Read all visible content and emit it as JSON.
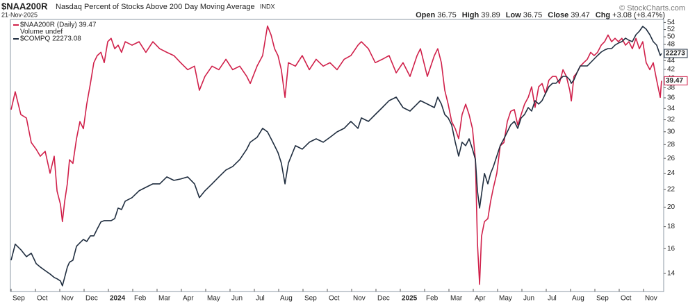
{
  "chart_data": {
    "type": "line",
    "title": "$NAA200R",
    "subtitle": "Nasdaq Percent of Stocks Above 200 Day Moving Average",
    "exchange": "INDX",
    "date": "21-Nov-2025",
    "watermark": "© StockCharts.com",
    "quote": [
      {
        "label": "Open",
        "value": 36.75
      },
      {
        "label": "High",
        "value": 39.89
      },
      {
        "label": "Low",
        "value": 36.75
      },
      {
        "label": "Close",
        "value": 39.47
      },
      {
        "label": "Chg",
        "value": "+3.08 (+8.47%)"
      }
    ],
    "legend_note": "Volume undef",
    "ylog": true,
    "y2log": true,
    "xlim": [
      0,
      26.8
    ],
    "ylim": [
      12.7,
      54.9
    ],
    "y2lim": [
      12425,
      24210
    ],
    "yticks": [
      14,
      16,
      18,
      20,
      22,
      24,
      26,
      28,
      30,
      32,
      34,
      36,
      38,
      40,
      42,
      44,
      46,
      48,
      50,
      52,
      54
    ],
    "xticks": [
      {
        "value": 0,
        "label": "Sep"
      },
      {
        "value": 1,
        "label": "Oct"
      },
      {
        "value": 2,
        "label": "Nov"
      },
      {
        "value": 3,
        "label": "Dec"
      },
      {
        "value": 4,
        "label": "2024"
      },
      {
        "value": 5,
        "label": "Feb"
      },
      {
        "value": 6,
        "label": "Mar"
      },
      {
        "value": 7,
        "label": "Apr"
      },
      {
        "value": 8,
        "label": "May"
      },
      {
        "value": 9,
        "label": "Jun"
      },
      {
        "value": 10,
        "label": "Jul"
      },
      {
        "value": 11,
        "label": "Aug"
      },
      {
        "value": 12,
        "label": "Sep"
      },
      {
        "value": 13,
        "label": "Oct"
      },
      {
        "value": 14,
        "label": "Nov"
      },
      {
        "value": 15,
        "label": "Dec"
      },
      {
        "value": 16,
        "label": "2025"
      },
      {
        "value": 17,
        "label": "Feb"
      },
      {
        "value": 18,
        "label": "Mar"
      },
      {
        "value": 19,
        "label": "Apr"
      },
      {
        "value": 20,
        "label": "May"
      },
      {
        "value": 21,
        "label": "Jun"
      },
      {
        "value": 22,
        "label": "Jul"
      },
      {
        "value": 23,
        "label": "Aug"
      },
      {
        "value": 24,
        "label": "Sep"
      },
      {
        "value": 25,
        "label": "Oct"
      },
      {
        "value": 26,
        "label": "Nov"
      }
    ],
    "x": [
      0,
      0.17,
      0.4,
      0.63,
      0.83,
      1.03,
      1.2,
      1.4,
      1.6,
      1.77,
      1.89,
      2.03,
      2.11,
      2.2,
      2.31,
      2.4,
      2.54,
      2.69,
      2.83,
      2.97,
      3.11,
      3.26,
      3.4,
      3.54,
      3.69,
      3.83,
      3.97,
      4.11,
      4.26,
      4.4,
      4.54,
      4.69,
      4.97,
      5.26,
      5.54,
      5.83,
      6.11,
      6.4,
      6.69,
      6.97,
      7.26,
      7.54,
      7.74,
      7.97,
      8.26,
      8.54,
      8.83,
      9.11,
      9.4,
      9.69,
      9.83,
      10.11,
      10.34,
      10.54,
      10.69,
      10.83,
      10.97,
      11.11,
      11.26,
      11.4,
      11.69,
      11.97,
      12.26,
      12.54,
      12.83,
      13.11,
      13.4,
      13.69,
      13.97,
      14.26,
      14.4,
      14.69,
      14.97,
      15.26,
      15.54,
      15.83,
      16.11,
      16.4,
      16.69,
      16.83,
      17.11,
      17.4,
      17.54,
      17.69,
      17.83,
      17.97,
      18.11,
      18.26,
      18.4,
      18.54,
      18.69,
      18.83,
      18.97,
      19.09,
      19.17,
      19.26,
      19.34,
      19.46,
      19.6,
      19.71,
      19.83,
      19.97,
      20.11,
      20.26,
      20.4,
      20.54,
      20.69,
      20.83,
      20.97,
      21.11,
      21.26,
      21.4,
      21.54,
      21.69,
      21.83,
      21.97,
      22.11,
      22.26,
      22.4,
      22.54,
      22.69,
      22.83,
      22.97,
      23.03,
      23.14,
      23.26,
      23.4,
      23.54,
      23.69,
      23.83,
      23.97,
      24.11,
      24.26,
      24.4,
      24.54,
      24.69,
      24.83,
      24.97,
      25.11,
      25.26,
      25.4,
      25.54,
      25.69,
      25.83,
      25.97,
      26.11,
      26.26,
      26.4,
      26.54,
      26.69,
      26.74
    ],
    "series": [
      {
        "name": "$NAA200R (Daily) 39.47",
        "color": "#d0204a",
        "end_label": "39.47",
        "values": [
          33.8,
          37.2,
          32.9,
          32.3,
          28.3,
          27.3,
          26.3,
          27.0,
          24.0,
          26.3,
          21.8,
          20.3,
          18.5,
          20.6,
          22.7,
          25.8,
          25.3,
          28.9,
          31.7,
          30.5,
          34.8,
          38.9,
          43.5,
          45.2,
          46.0,
          43.5,
          48.7,
          49.6,
          46.9,
          47.8,
          46.0,
          48.7,
          47.8,
          48.7,
          46.0,
          48.7,
          46.9,
          46.0,
          45.2,
          43.5,
          41.9,
          42.7,
          37.5,
          40.4,
          42.7,
          41.9,
          44.3,
          41.9,
          42.7,
          40.4,
          38.9,
          42.7,
          45.2,
          53.0,
          50.5,
          46.9,
          45.2,
          41.9,
          36.1,
          43.5,
          42.7,
          45.2,
          41.9,
          44.3,
          42.7,
          43.5,
          41.9,
          44.3,
          45.2,
          47.8,
          48.7,
          46.9,
          43.5,
          44.3,
          45.2,
          41.2,
          43.5,
          40.4,
          45.2,
          46.9,
          40.4,
          45.2,
          46.9,
          43.5,
          37.5,
          34.8,
          31.7,
          30.5,
          28.9,
          32.9,
          34.8,
          32.9,
          30.5,
          25.8,
          16.5,
          13.2,
          17.1,
          18.5,
          18.8,
          20.6,
          22.2,
          24.0,
          27.8,
          28.3,
          31.7,
          33.5,
          33.8,
          31.1,
          32.9,
          34.8,
          36.1,
          38.2,
          34.2,
          38.2,
          38.9,
          36.8,
          39.6,
          40.4,
          40.4,
          38.9,
          41.9,
          40.4,
          37.5,
          35.4,
          40.4,
          41.2,
          42.7,
          43.5,
          44.3,
          46.0,
          45.2,
          46.0,
          47.8,
          48.7,
          50.5,
          48.7,
          49.6,
          48.7,
          49.6,
          47.8,
          48.7,
          46.9,
          49.6,
          46.9,
          48.7,
          43.5,
          41.9,
          43.5,
          39.6,
          36.1,
          39.47
        ]
      },
      {
        "name": "$COMPQ 22273.08",
        "color": "#1f2d3f",
        "axis": "y2",
        "end_label": "22273",
        "values": [
          13417,
          13954,
          13765,
          13533,
          13649,
          13303,
          13191,
          13079,
          12969,
          12860,
          12817,
          12751,
          12600,
          12860,
          13191,
          13351,
          13417,
          13883,
          14001,
          14119,
          14048,
          14241,
          14241,
          14484,
          14734,
          14783,
          14783,
          14783,
          14859,
          15244,
          15190,
          15507,
          15638,
          15906,
          16041,
          16179,
          16179,
          16456,
          16317,
          16373,
          16456,
          16179,
          15638,
          15906,
          16179,
          16456,
          16738,
          16881,
          17170,
          17614,
          17916,
          18131,
          18536,
          18378,
          18068,
          17765,
          17465,
          17025,
          16179,
          17025,
          17765,
          17614,
          17916,
          18068,
          17916,
          18131,
          18378,
          18536,
          18854,
          18536,
          19015,
          18854,
          19177,
          19505,
          19841,
          20010,
          19505,
          19340,
          19674,
          19841,
          19674,
          19505,
          20010,
          19674,
          19177,
          19015,
          18694,
          17916,
          17317,
          17916,
          17765,
          18068,
          17614,
          17170,
          15906,
          15244,
          15772,
          16596,
          16179,
          16596,
          16881,
          17317,
          17765,
          18068,
          18378,
          18694,
          18854,
          18536,
          19015,
          19177,
          19505,
          19340,
          19841,
          19674,
          19841,
          20182,
          20527,
          20703,
          20703,
          20879,
          21057,
          21057,
          20879,
          20703,
          20879,
          21237,
          21603,
          21603,
          21603,
          21786,
          21972,
          22159,
          22349,
          22463,
          22540,
          22540,
          22732,
          22848,
          22926,
          23122,
          23004,
          22926,
          23320,
          23518,
          23801,
          23639,
          23320,
          22926,
          22732,
          22159,
          22273.08
        ]
      }
    ]
  }
}
